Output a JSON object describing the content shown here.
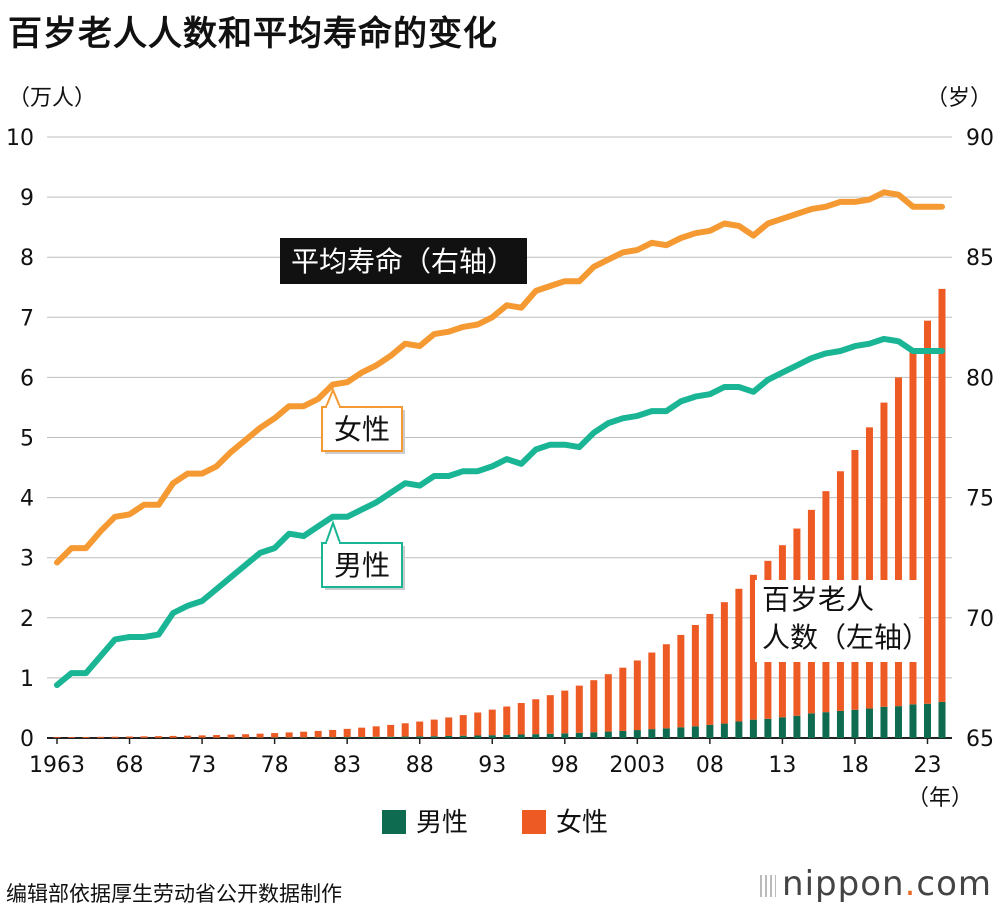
{
  "chart_data": {
    "type": "bar",
    "title": "百岁老人人数和平均寿命的变化",
    "y_left_unit": "（万人）",
    "y_right_unit": "（岁）",
    "x_unit": "（年）",
    "y_left_ticks": [
      "0",
      "1",
      "2",
      "3",
      "4",
      "5",
      "6",
      "7",
      "8",
      "9",
      "10"
    ],
    "y_right_ticks": [
      "65",
      "70",
      "75",
      "80",
      "85",
      "90"
    ],
    "ylim_left": [
      0,
      10
    ],
    "ylim_right": [
      65,
      90
    ],
    "xlim": [
      1963,
      2024
    ],
    "x_ticks": [
      {
        "year": 1963,
        "label": "1963"
      },
      {
        "year": 1968,
        "label": "68"
      },
      {
        "year": 1973,
        "label": "73"
      },
      {
        "year": 1978,
        "label": "78"
      },
      {
        "year": 1983,
        "label": "83"
      },
      {
        "year": 1988,
        "label": "88"
      },
      {
        "year": 1993,
        "label": "93"
      },
      {
        "year": 1998,
        "label": "98"
      },
      {
        "year": 2003,
        "label": "2003"
      },
      {
        "year": 2008,
        "label": "08"
      },
      {
        "year": 2013,
        "label": "13"
      },
      {
        "year": 2018,
        "label": "18"
      },
      {
        "year": 2023,
        "label": "23"
      }
    ],
    "bar_years": [
      1963,
      1964,
      1965,
      1966,
      1967,
      1968,
      1969,
      1970,
      1971,
      1972,
      1973,
      1974,
      1975,
      1976,
      1977,
      1978,
      1979,
      1980,
      1981,
      1982,
      1983,
      1984,
      1985,
      1986,
      1987,
      1988,
      1989,
      1990,
      1991,
      1992,
      1993,
      1994,
      1995,
      1996,
      1997,
      1998,
      1999,
      2000,
      2001,
      2002,
      2003,
      2004,
      2005,
      2006,
      2007,
      2008,
      2009,
      2010,
      2011,
      2012,
      2013,
      2014,
      2015,
      2016,
      2017,
      2018,
      2019,
      2020,
      2021,
      2022,
      2023,
      2024
    ],
    "bar_series": [
      {
        "name": "男性",
        "color": "#0e6b50",
        "values": [
          0.002,
          0.002,
          0.002,
          0.003,
          0.003,
          0.003,
          0.003,
          0.003,
          0.004,
          0.004,
          0.005,
          0.005,
          0.006,
          0.006,
          0.007,
          0.008,
          0.009,
          0.01,
          0.011,
          0.013,
          0.015,
          0.017,
          0.019,
          0.021,
          0.024,
          0.027,
          0.03,
          0.034,
          0.038,
          0.042,
          0.047,
          0.052,
          0.058,
          0.064,
          0.07,
          0.078,
          0.086,
          0.096,
          0.107,
          0.118,
          0.132,
          0.148,
          0.16,
          0.178,
          0.195,
          0.218,
          0.24,
          0.275,
          0.305,
          0.32,
          0.345,
          0.37,
          0.41,
          0.43,
          0.45,
          0.47,
          0.49,
          0.52,
          0.53,
          0.56,
          0.57,
          0.6
        ]
      },
      {
        "name": "女性",
        "color": "#ee5a24",
        "values": [
          0.012,
          0.013,
          0.015,
          0.017,
          0.019,
          0.022,
          0.025,
          0.028,
          0.031,
          0.035,
          0.039,
          0.044,
          0.05,
          0.057,
          0.065,
          0.074,
          0.084,
          0.095,
          0.107,
          0.121,
          0.137,
          0.155,
          0.175,
          0.197,
          0.221,
          0.247,
          0.276,
          0.308,
          0.343,
          0.382,
          0.425,
          0.472,
          0.524,
          0.581,
          0.643,
          0.711,
          0.785,
          0.866,
          0.955,
          1.052,
          1.158,
          1.274,
          1.4,
          1.537,
          1.685,
          1.846,
          2.02,
          2.208,
          2.41,
          2.628,
          2.863,
          3.115,
          3.386,
          3.677,
          3.988,
          4.322,
          4.679,
          5.061,
          5.47,
          5.907,
          6.374,
          6.873
        ]
      }
    ],
    "line_years": [
      1963,
      1964,
      1965,
      1966,
      1967,
      1968,
      1969,
      1970,
      1971,
      1972,
      1973,
      1974,
      1975,
      1976,
      1977,
      1978,
      1979,
      1980,
      1981,
      1982,
      1983,
      1984,
      1985,
      1986,
      1987,
      1988,
      1989,
      1990,
      1991,
      1992,
      1993,
      1994,
      1995,
      1996,
      1997,
      1998,
      1999,
      2000,
      2001,
      2002,
      2003,
      2004,
      2005,
      2006,
      2007,
      2008,
      2009,
      2010,
      2011,
      2012,
      2013,
      2014,
      2015,
      2016,
      2017,
      2018,
      2019,
      2020,
      2021,
      2022,
      2023,
      2024
    ],
    "line_series": [
      {
        "name": "女性",
        "color": "#f59a33",
        "values": [
          72.3,
          72.9,
          72.9,
          73.6,
          74.2,
          74.3,
          74.7,
          74.7,
          75.6,
          76.0,
          76.0,
          76.3,
          76.9,
          77.4,
          77.9,
          78.3,
          78.8,
          78.8,
          79.1,
          79.7,
          79.8,
          80.2,
          80.5,
          80.9,
          81.4,
          81.3,
          81.8,
          81.9,
          82.1,
          82.2,
          82.5,
          83.0,
          82.9,
          83.6,
          83.8,
          84.0,
          84.0,
          84.6,
          84.9,
          85.2,
          85.3,
          85.6,
          85.5,
          85.8,
          86.0,
          86.1,
          86.4,
          86.3,
          85.9,
          86.4,
          86.6,
          86.8,
          87.0,
          87.1,
          87.3,
          87.3,
          87.4,
          87.7,
          87.6,
          87.1,
          87.1,
          87.1
        ]
      },
      {
        "name": "男性",
        "color": "#1ab595",
        "values": [
          67.2,
          67.7,
          67.7,
          68.4,
          69.1,
          69.2,
          69.2,
          69.3,
          70.2,
          70.5,
          70.7,
          71.2,
          71.7,
          72.2,
          72.7,
          72.9,
          73.5,
          73.4,
          73.8,
          74.2,
          74.2,
          74.5,
          74.8,
          75.2,
          75.6,
          75.5,
          75.9,
          75.9,
          76.1,
          76.1,
          76.3,
          76.6,
          76.4,
          77.0,
          77.2,
          77.2,
          77.1,
          77.7,
          78.1,
          78.3,
          78.4,
          78.6,
          78.6,
          79.0,
          79.2,
          79.3,
          79.6,
          79.6,
          79.4,
          79.9,
          80.2,
          80.5,
          80.8,
          81.0,
          81.1,
          81.3,
          81.4,
          81.6,
          81.5,
          81.1,
          81.1,
          81.1
        ]
      }
    ],
    "annotations": {
      "lifespan_label": "平均寿命（右轴）",
      "female_label": "女性",
      "male_label": "男性",
      "centenarian_line1": "百岁老人",
      "centenarian_line2": "人数（左轴）"
    },
    "legend": [
      {
        "label": "男性",
        "color": "#0e6b50"
      },
      {
        "label": "女性",
        "color": "#ee5a24"
      }
    ],
    "grid": true,
    "legend_position": "bottom-center"
  },
  "footer": {
    "source": "编辑部依据厚生劳动省公开数据制作",
    "brand_main": "nippon",
    "brand_dot": ".",
    "brand_suffix": "com"
  }
}
